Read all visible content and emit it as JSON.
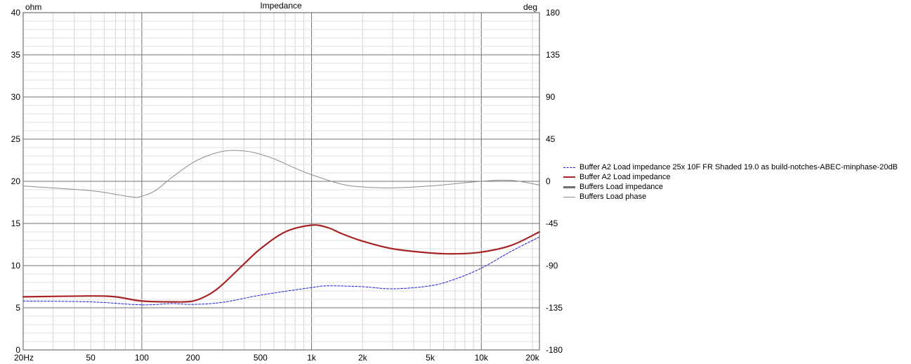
{
  "chart_data": {
    "type": "line",
    "title": "Impedance",
    "xscale": "log",
    "xlim": [
      20,
      22000
    ],
    "ylim_left": [
      0,
      40
    ],
    "ylim_right": [
      -180,
      180
    ],
    "left_unit": "ohm",
    "right_unit": "deg",
    "x_ticks": [
      {
        "value": 20,
        "label": "20Hz"
      },
      {
        "value": 50,
        "label": "50"
      },
      {
        "value": 100,
        "label": "100"
      },
      {
        "value": 200,
        "label": "200"
      },
      {
        "value": 500,
        "label": "500"
      },
      {
        "value": 1000,
        "label": "1k"
      },
      {
        "value": 2000,
        "label": "2k"
      },
      {
        "value": 5000,
        "label": "5k"
      },
      {
        "value": 10000,
        "label": "10k"
      },
      {
        "value": 20000,
        "label": "20k"
      }
    ],
    "y_left_ticks": [
      "0",
      "5",
      "10",
      "15",
      "20",
      "25",
      "30",
      "35",
      "40"
    ],
    "y_right_ticks": [
      "-180",
      "-135",
      "-90",
      "-45",
      "0",
      "45",
      "90",
      "135",
      "180"
    ],
    "grid": true,
    "legend_position": "right",
    "series": [
      {
        "name": "Buffer A2 Load impedance 25x 10F FR Shaded 19.0 as build-notches-ABEC-minphase-20dB",
        "axis": "left",
        "color": "#1f1fd8",
        "style": "dashed",
        "x": [
          20,
          50,
          100,
          150,
          200,
          300,
          500,
          1000,
          1250,
          2000,
          3000,
          5000,
          7000,
          10000,
          15000,
          22000
        ],
        "y": [
          5.8,
          5.7,
          5.35,
          5.5,
          5.4,
          5.65,
          6.5,
          7.4,
          7.6,
          7.5,
          7.25,
          7.6,
          8.4,
          9.7,
          11.7,
          13.4
        ]
      },
      {
        "name": "Buffer A2 Load impedance",
        "axis": "left",
        "color": "#a82424",
        "style": "solid-thick",
        "x": [
          20,
          50,
          70,
          100,
          150,
          200,
          250,
          300,
          400,
          500,
          700,
          1000,
          1250,
          1500,
          2000,
          3000,
          5000,
          7000,
          10000,
          15000,
          22000
        ],
        "y": [
          6.3,
          6.4,
          6.3,
          5.8,
          5.7,
          5.8,
          6.6,
          7.8,
          10.2,
          12.0,
          14.0,
          14.8,
          14.5,
          13.8,
          12.9,
          12.0,
          11.5,
          11.4,
          11.6,
          12.4,
          14.0
        ]
      },
      {
        "name": "Buffers Load impedance",
        "axis": "left",
        "color": "#6e6e6e",
        "style": "solid-thick",
        "x": [],
        "y": []
      },
      {
        "name": "Buffers Load phase",
        "axis": "right",
        "color": "#8c8c8c",
        "style": "solid-thin",
        "x": [
          20,
          50,
          70,
          90,
          100,
          120,
          150,
          200,
          250,
          300,
          350,
          450,
          600,
          800,
          1000,
          1500,
          2000,
          3000,
          5000,
          10000,
          15000,
          22000
        ],
        "y": [
          -5,
          -10,
          -14,
          -17,
          -16,
          -10,
          4,
          20,
          28,
          32,
          33,
          31,
          24,
          14,
          7,
          -3,
          -6,
          -7,
          -5,
          0,
          1,
          -4
        ]
      }
    ]
  }
}
